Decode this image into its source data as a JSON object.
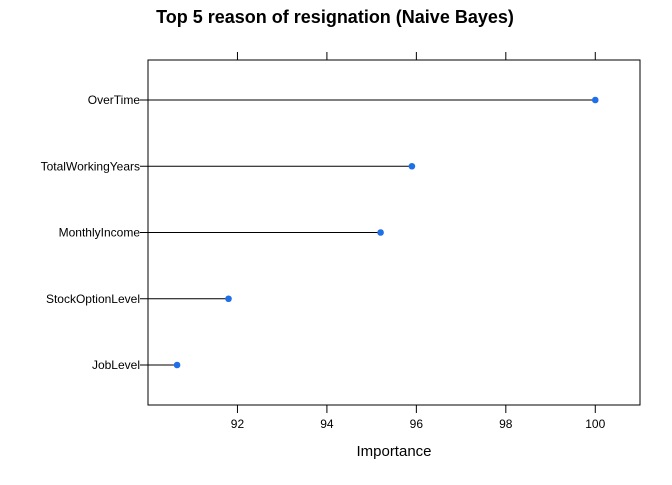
{
  "chart_data": {
    "type": "dotplot",
    "title": "Top 5 reason of resignation (Naive Bayes)",
    "xlabel": "Importance",
    "ylabel": "",
    "xlim": [
      90.0,
      101.0
    ],
    "x_ticks": [
      92,
      94,
      96,
      98,
      100
    ],
    "categories": [
      "OverTime",
      "TotalWorkingYears",
      "MonthlyIncome",
      "StockOptionLevel",
      "JobLevel"
    ],
    "values": [
      100.0,
      95.9,
      95.2,
      91.8,
      90.65
    ],
    "point_color": "#1E6FE8",
    "grid": false
  }
}
